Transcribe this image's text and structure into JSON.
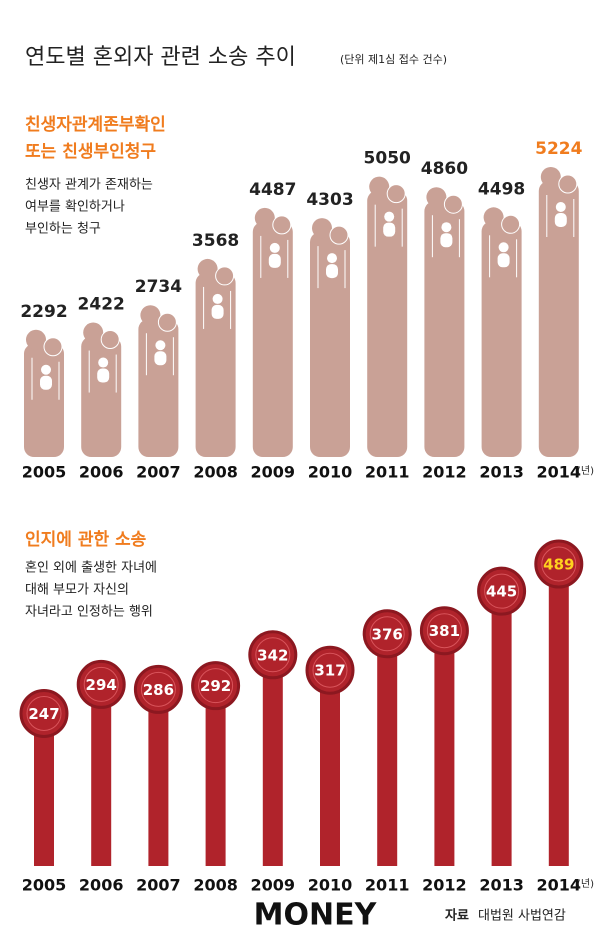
{
  "title": "연도별 혼외자 관련 소송 추이",
  "unit": "(단위 제1심 접수 건수)",
  "chart_data": [
    {
      "type": "bar",
      "style": "people",
      "title": [
        "친생자관계존부확인",
        "또는 친생부인청구"
      ],
      "description": [
        "친생자 관계가 존재하는",
        "여부를 확인하거나",
        "부인하는 청구"
      ],
      "categories": [
        "2005",
        "2006",
        "2007",
        "2008",
        "2009",
        "2010",
        "2011",
        "2012",
        "2013",
        "2014"
      ],
      "category_unit": "(년)",
      "values": [
        2292,
        2422,
        2734,
        3568,
        4487,
        4303,
        5050,
        4860,
        4498,
        5224
      ],
      "color": "#c9a196",
      "label_color": "#222222",
      "highlight_index": 9,
      "highlight_color": "#f07c1e"
    },
    {
      "type": "bar",
      "style": "seal",
      "title": [
        "인지에 관한 소송"
      ],
      "description": [
        "혼인 외에 출생한 자녀에",
        "대해 부모가 자신의",
        "자녀라고 인정하는 행위"
      ],
      "categories": [
        "2005",
        "2006",
        "2007",
        "2008",
        "2009",
        "2010",
        "2011",
        "2012",
        "2013",
        "2014"
      ],
      "category_unit": "(년)",
      "values": [
        247,
        294,
        286,
        292,
        342,
        317,
        376,
        381,
        445,
        489
      ],
      "color": "#b0232b",
      "label_color": "#ffffff",
      "highlight_index": 9,
      "highlight_color": "#ffd21f"
    }
  ],
  "footer": {
    "brand": "MONEY",
    "source_label": "자료",
    "source": "대법원 사법연감"
  }
}
